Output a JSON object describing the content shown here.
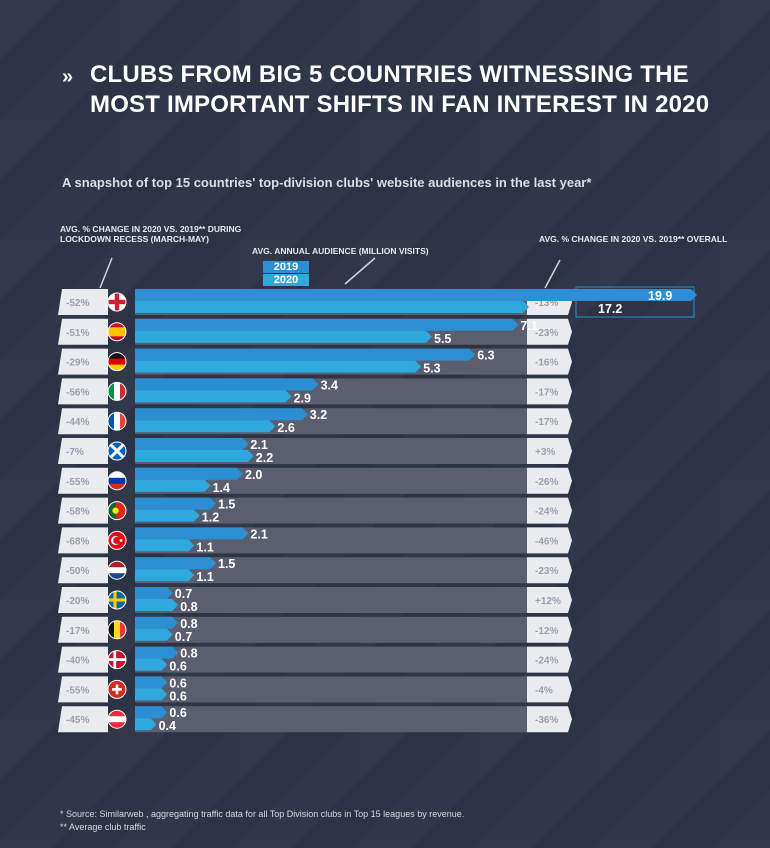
{
  "header": {
    "marker": "»",
    "title_line1": "CLUBS FROM BIG 5 COUNTRIES WITNESSING THE",
    "title_line2": "MOST IMPORTANT SHIFTS IN FAN INTEREST IN 2020",
    "subtitle": "A snapshot of top 15 countries' top-division clubs' website audiences in the last year*"
  },
  "column_headers": {
    "left": "AVG. % CHANGE IN 2020 VS. 2019** DURING LOCKDOWN RECESS (MARCH-MAY)",
    "middle": "AVG. ANNUAL AUDIENCE (MILLION VISITS)",
    "right": "AVG. % CHANGE IN 2020 VS. 2019** OVERALL"
  },
  "legend": {
    "year_2019": "2019",
    "year_2020": "2020"
  },
  "colors": {
    "bar_2019": "#2c8fd3",
    "bar_2020": "#2fa8dd",
    "track": "#5a5e6e",
    "label_box": "#e9ebee",
    "background": "#2b3344"
  },
  "chart_data": {
    "type": "bar",
    "x_max_visible": 7.5,
    "flags": [
      "england-flag-icon",
      "spain-flag-icon",
      "germany-flag-icon",
      "italy-flag-icon",
      "france-flag-icon",
      "scotland-flag-icon",
      "russia-flag-icon",
      "portugal-flag-icon",
      "turkey-flag-icon",
      "netherlands-flag-icon",
      "sweden-flag-icon",
      "belgium-flag-icon",
      "denmark-flag-icon",
      "switzerland-flag-icon",
      "austria-flag-icon"
    ],
    "lockdown_change": [
      "-52%",
      "-51%",
      "-29%",
      "-56%",
      "-44%",
      "-7%",
      "-55%",
      "-58%",
      "-68%",
      "-50%",
      "-20%",
      "-17%",
      "-40%",
      "-55%",
      "-45%"
    ],
    "overall_change": [
      "-13%",
      "-23%",
      "-16%",
      "-17%",
      "-17%",
      "+3%",
      "-26%",
      "-24%",
      "-46%",
      "-23%",
      "+12%",
      "-12%",
      "-24%",
      "-4%",
      "-36%"
    ],
    "series": [
      {
        "name": "2019",
        "values": [
          19.9,
          7.1,
          6.3,
          3.4,
          3.2,
          2.1,
          2.0,
          1.5,
          2.1,
          1.5,
          0.7,
          0.8,
          0.8,
          0.6,
          0.6
        ]
      },
      {
        "name": "2020",
        "values": [
          17.2,
          5.5,
          5.3,
          2.9,
          2.6,
          2.2,
          1.4,
          1.2,
          1.1,
          1.1,
          0.8,
          0.7,
          0.6,
          0.6,
          0.4
        ]
      }
    ]
  },
  "footnotes": {
    "source": "* Source: Similarweb , aggregating traffic data for all Top Division clubs in Top 15 leagues by revenue.",
    "average": "** Average club traffic"
  }
}
